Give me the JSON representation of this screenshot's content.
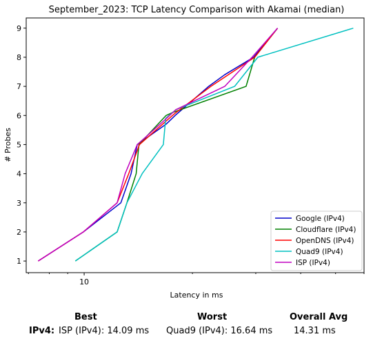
{
  "chart_data": {
    "type": "line",
    "title": "September_2023: TCP Latency Comparison with Akamai (median)",
    "xlabel": "Latency in ms",
    "ylabel": "# Probes",
    "xscale": "log",
    "xlim": [
      6.9,
      60
    ],
    "ylim": [
      0.6,
      9.35
    ],
    "yticks": [
      1,
      2,
      3,
      4,
      5,
      6,
      7,
      8,
      9
    ],
    "xticks": [
      {
        "value": 10,
        "label": "10"
      }
    ],
    "legend_position": "lower-right",
    "series": [
      {
        "name": "Google (IPv4)",
        "color": "#0000cc",
        "x": [
          7.45,
          9.95,
          12.65,
          13.5,
          14.05,
          16.9,
          17.9,
          22.2,
          24.6,
          29.6,
          34.5
        ],
        "y": [
          1,
          2,
          3,
          4,
          5,
          5.7,
          6,
          7,
          7.4,
          8,
          9
        ]
      },
      {
        "name": "Cloudflare (IPv4)",
        "color": "#008000",
        "x": [
          9.45,
          12.35,
          13.15,
          13.95,
          14.2,
          16.9,
          17.6,
          28.2,
          29.8,
          34.5
        ],
        "y": [
          1,
          2,
          3,
          4,
          5,
          6,
          6.1,
          7,
          8,
          9
        ]
      },
      {
        "name": "OpenDNS (IPv4)",
        "color": "#ff0000",
        "x": [
          7.45,
          9.95,
          12.35,
          13.3,
          14.25,
          17.6,
          18.0,
          22.5,
          29.8,
          34.5
        ],
        "y": [
          1,
          2,
          3,
          4,
          5,
          6,
          6.1,
          7,
          8,
          9
        ]
      },
      {
        "name": "Quad9 (IPv4)",
        "color": "#00c0c0",
        "x": [
          9.45,
          12.35,
          13.15,
          14.5,
          16.6,
          16.85,
          18.0,
          26.2,
          30.4,
          56.0
        ],
        "y": [
          1,
          2,
          3,
          4,
          5,
          5.9,
          6.2,
          7,
          8,
          9
        ]
      },
      {
        "name": "ISP (IPv4)",
        "color": "#c000c0",
        "x": [
          7.45,
          9.95,
          12.35,
          13.0,
          14.05,
          16.6,
          18.0,
          24.6,
          29.3,
          34.5
        ],
        "y": [
          1,
          2,
          3,
          4,
          5,
          5.8,
          6.2,
          7,
          8,
          9
        ]
      }
    ]
  },
  "summary": {
    "headers": {
      "best": "Best",
      "worst": "Worst",
      "avg": "Overall Avg"
    },
    "row_label": "IPv4",
    "row_separator": ":",
    "best": "ISP (IPv4): 14.09 ms",
    "worst": "Quad9 (IPv4): 16.64 ms",
    "avg": "14.31 ms"
  }
}
